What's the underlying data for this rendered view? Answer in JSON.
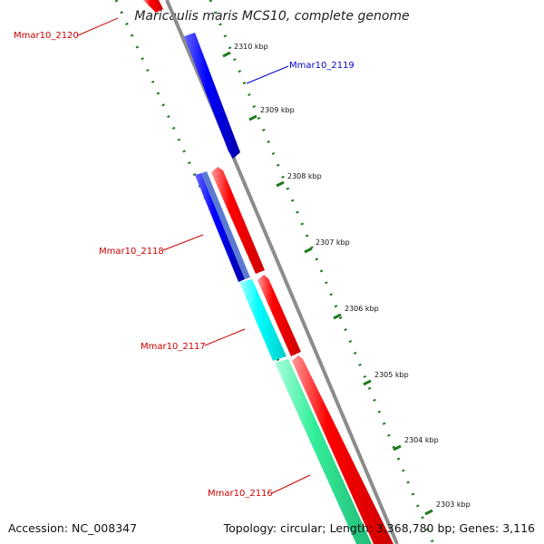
{
  "title": "Maricaulis maris MCS10, complete genome",
  "footer": {
    "accession": "Accession: NC_008347",
    "summary": "Topology: circular; Length: 3,368,780 bp; Genes: 3,116"
  },
  "ticks": [
    "2310 kbp",
    "2309 kbp",
    "2308 kbp",
    "2307 kbp",
    "2306 kbp",
    "2305 kbp",
    "2304 kbp",
    "2303 kbp"
  ],
  "genes": [
    {
      "label": "Mmar10_2120",
      "color": "#cc0000"
    },
    {
      "label": "Mmar10_2119",
      "color": "#0000cc"
    },
    {
      "label": "Mmar10_2118",
      "color": "#cc0000"
    },
    {
      "label": "Mmar10_2117",
      "color": "#cc0000"
    },
    {
      "label": "Mmar10_2116",
      "color": "#cc0000"
    }
  ],
  "colors": {
    "backbone": "#8c8c8c",
    "forward_gene": "#ff0000",
    "reverse_gene": "#0000ff",
    "reverse_gene_alt": "#5577cc",
    "cyan_gene": "#00ffff",
    "green_gene": "#33ee99",
    "tick": "#1f7a1f"
  }
}
